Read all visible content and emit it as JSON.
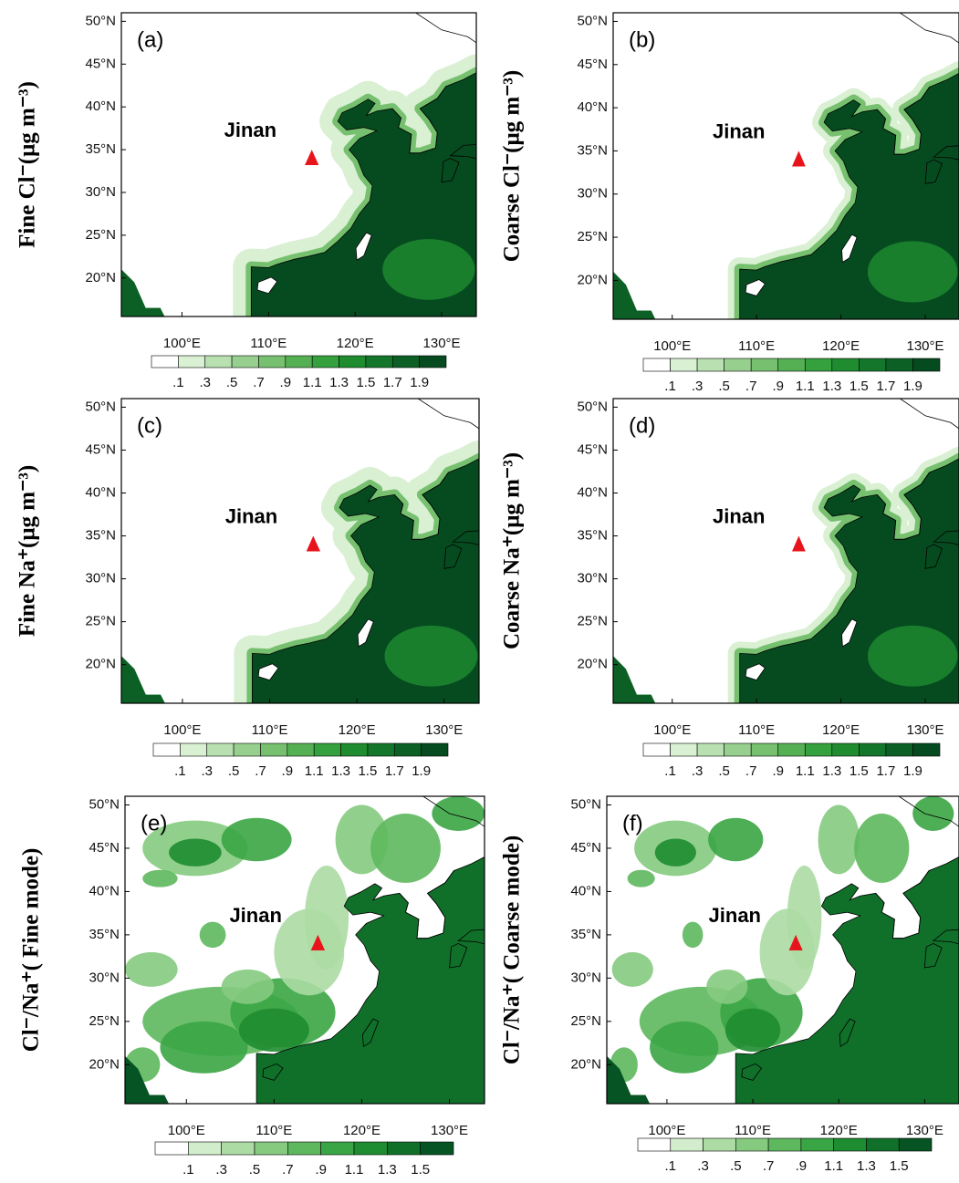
{
  "figure": {
    "panels": [
      {
        "label": "(a)",
        "ylabel": "Fine Cl⁻(μg m⁻³)",
        "colorbar": 0
      },
      {
        "label": "(b)",
        "ylabel": "Coarse Cl⁻(μg m⁻³)",
        "colorbar": 0
      },
      {
        "label": "(c)",
        "ylabel": "Fine Na⁺(μg m⁻³)",
        "colorbar": 0
      },
      {
        "label": "(d)",
        "ylabel": "Coarse Na⁺(μg m⁻³)",
        "colorbar": 0
      },
      {
        "label": "(e)",
        "ylabel": "Cl⁻/Na⁺( Fine mode)",
        "colorbar": 1
      },
      {
        "label": "(f)",
        "ylabel": "Cl⁻/Na⁺( Coarse mode)",
        "colorbar": 1
      }
    ],
    "annotation": "Jinan",
    "xlim": [
      93,
      134
    ],
    "ylim": [
      15.5,
      51
    ],
    "xticks": [
      {
        "value": 100,
        "label": "100°E"
      },
      {
        "value": 110,
        "label": "110°E"
      },
      {
        "value": 120,
        "label": "120°E"
      },
      {
        "value": 130,
        "label": "130°E"
      }
    ],
    "yticks": [
      {
        "value": 20,
        "label": "20°N"
      },
      {
        "value": 25,
        "label": "25°N"
      },
      {
        "value": 30,
        "label": "30°N"
      },
      {
        "value": 35,
        "label": "35°N"
      },
      {
        "value": 40,
        "label": "40°N"
      },
      {
        "value": 45,
        "label": "45°N"
      },
      {
        "value": 50,
        "label": "50°N"
      }
    ],
    "colorbars": [
      {
        "levels": [
          {
            "value": 0.1,
            "label": ".1"
          },
          {
            "value": 0.3,
            "label": ".3"
          },
          {
            "value": 0.5,
            "label": ".5"
          },
          {
            "value": 0.7,
            "label": ".7"
          },
          {
            "value": 0.9,
            "label": ".9"
          },
          1.1,
          1.3,
          1.5,
          1.7,
          1.9
        ],
        "colors": [
          "#ffffff",
          "#d9f0d3",
          "#b8e0b0",
          "#97d08e",
          "#76c06f",
          "#55b054",
          "#34a03e",
          "#1e8c2f",
          "#14762a",
          "#0c6026",
          "#064b20"
        ]
      },
      {
        "levels": [
          {
            "value": 0.1,
            "label": ".1"
          },
          {
            "value": 0.3,
            "label": ".3"
          },
          {
            "value": 0.5,
            "label": ".5"
          },
          {
            "value": 0.7,
            "label": ".7"
          },
          {
            "value": 0.9,
            "label": ".9"
          },
          1.1,
          1.3,
          1.5
        ],
        "colors": [
          "#ffffff",
          "#d2edcc",
          "#acdca4",
          "#85ca7f",
          "#5eb85d",
          "#3aa544",
          "#1e8c30",
          "#10702a",
          "#065423"
        ]
      }
    ]
  }
}
